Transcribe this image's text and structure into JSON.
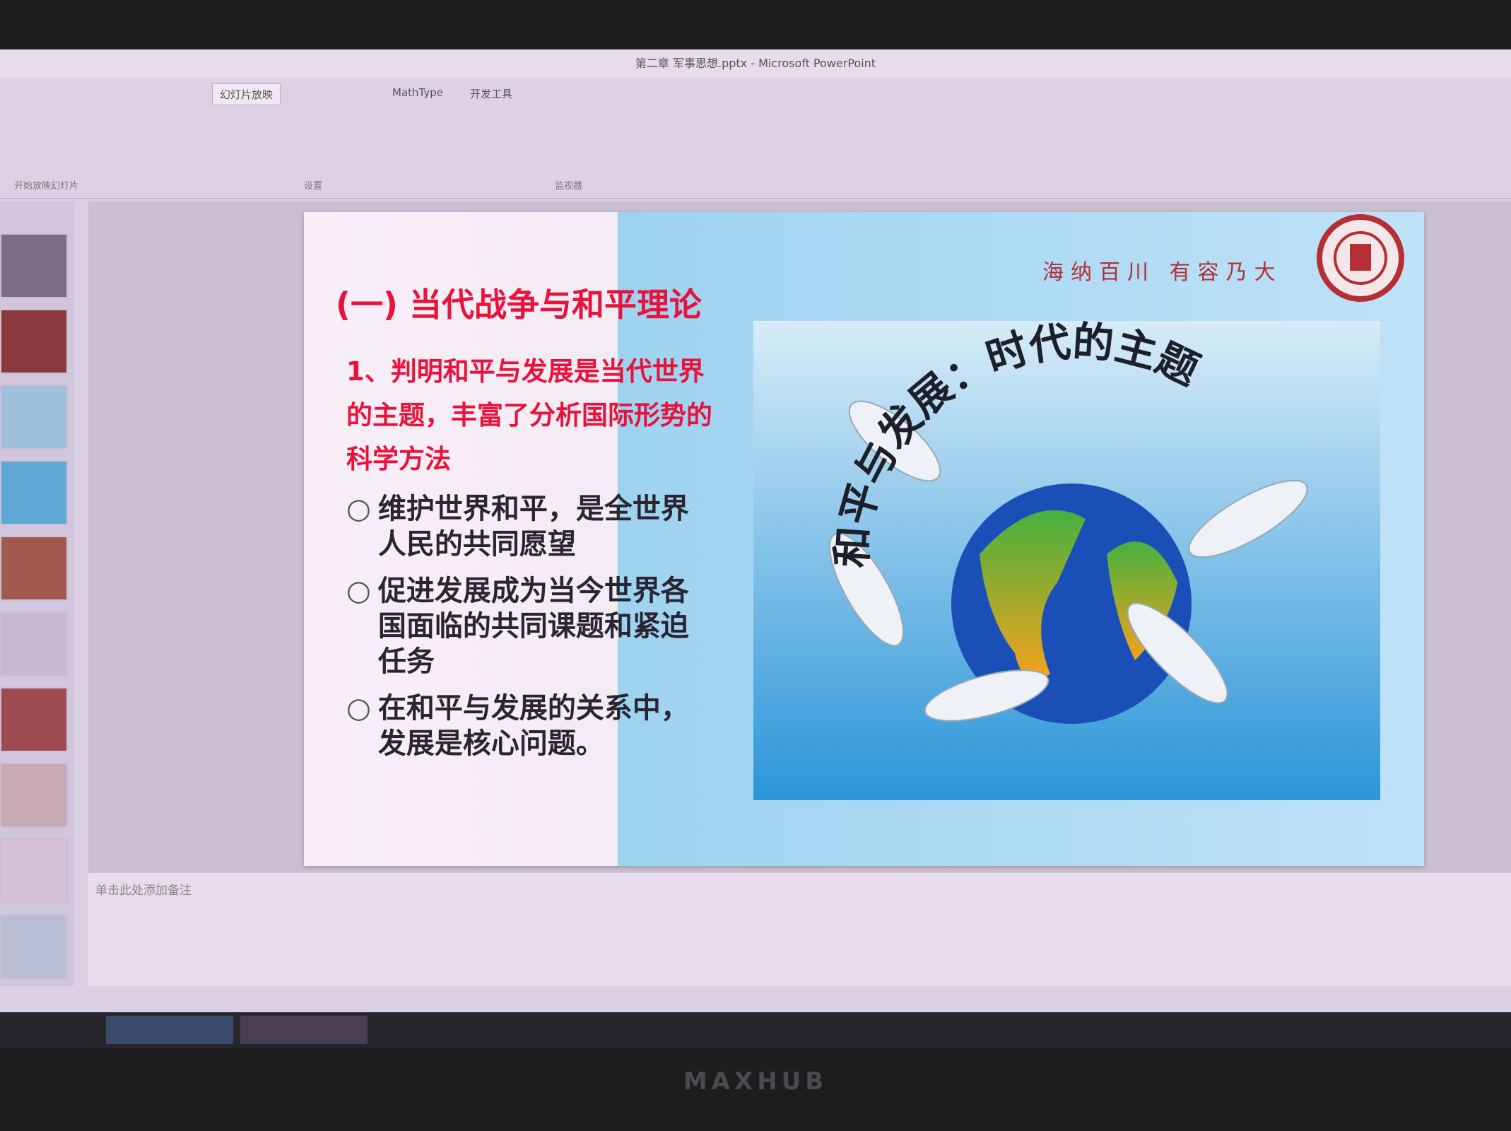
{
  "title_bar": "第二章 军事思想.pptx - Microsoft PowerPoint",
  "ribbon": {
    "tabs": [
      "幻灯片放映",
      "MathType",
      "开发工具"
    ],
    "groups": [
      "开始放映幻灯片",
      "设置",
      "监视器"
    ]
  },
  "slide": {
    "motto": "海纳百川 有容乃大",
    "heading": "(一) 当代战争与和平理论",
    "subheading": "1、判明和平与发展是当代世界的主题，丰富了分析国际形势的科学方法",
    "bullets": [
      "维护世界和平，是全世界人民的共同愿望",
      "促进发展成为当今世界各国面临的共同课题和紧迫任务",
      "在和平与发展的关系中，发展是核心问题。"
    ],
    "image_caption": "和平与发展：时代的主题"
  },
  "notes": "单击此处添加备注",
  "bezel_brand": "MAXHUB"
}
